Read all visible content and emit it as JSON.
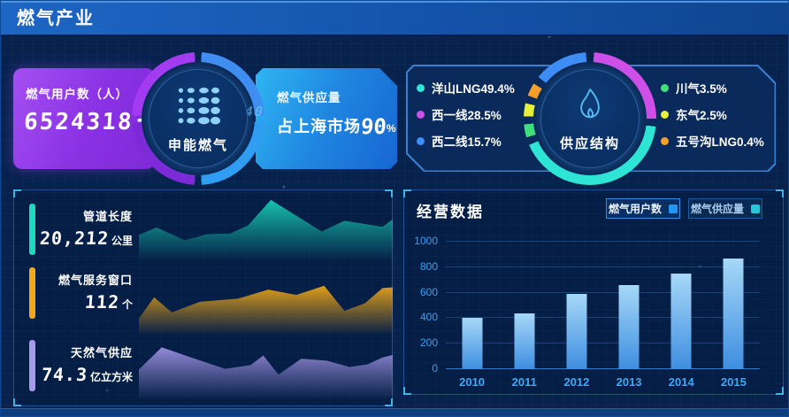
{
  "colors": {
    "background": "#06224d",
    "header_gradient_start": "#1e66c4",
    "header_gradient_end": "#0f458f",
    "users_card_purple": "#8a31e4",
    "supply_card_blue": "#1f86e0",
    "panel_border": "#1d5092",
    "axis_label": "#3fa9f5"
  },
  "header": {
    "title": "燃气产业"
  },
  "gas_users_card": {
    "label": "燃气用户数（人）",
    "value": "65243183"
  },
  "company_ring": {
    "name": "申能燃气",
    "decor_number": "40"
  },
  "gas_supply_card": {
    "label": "燃气供应量",
    "market_prefix": "占上海市场",
    "percent": "90",
    "percent_sign": "%"
  },
  "supply_structure": {
    "title": "供应结构",
    "legend_left": [
      {
        "label": "洋山LNG49.4%",
        "color": "#2ee6d4"
      },
      {
        "label": "西一线28.5%",
        "color": "#cf4fe8"
      },
      {
        "label": "西二线15.7%",
        "color": "#3f8ef5"
      }
    ],
    "legend_right": [
      {
        "label": "川气3.5%",
        "color": "#3fe07a"
      },
      {
        "label": "东气2.5%",
        "color": "#e8f03a"
      },
      {
        "label": "五号沟LNG0.4%",
        "color": "#f5a028"
      }
    ]
  },
  "stats_panel": {
    "rows": [
      {
        "label": "管道长度",
        "value": "20,212",
        "unit": "公里",
        "color": "#1fd8c0"
      },
      {
        "label": "燃气服务窗口",
        "value": "112",
        "unit": "个",
        "color": "#f0a818"
      },
      {
        "label": "天然气供应",
        "value": "74.3",
        "unit": "亿立方米",
        "color": "#a89ae8"
      }
    ]
  },
  "business_panel": {
    "title": "经营数据",
    "buttons": [
      {
        "label": "燃气用户数",
        "color": "#2196f3",
        "active": true
      },
      {
        "label": "燃气供应量",
        "color": "#26c6da",
        "active": false
      }
    ]
  },
  "chart_data": [
    {
      "type": "pie",
      "title": "供应结构",
      "legend_position": "both-sides",
      "series": [
        {
          "name": "洋山LNG",
          "value": 49.4,
          "color": "#2ee6d4"
        },
        {
          "name": "西一线",
          "value": 28.5,
          "color": "#cf4fe8"
        },
        {
          "name": "西二线",
          "value": 15.7,
          "color": "#3f8ef5"
        },
        {
          "name": "川气",
          "value": 3.5,
          "color": "#3fe07a"
        },
        {
          "name": "东气",
          "value": 2.5,
          "color": "#e8f03a"
        },
        {
          "name": "五号沟LNG",
          "value": 0.4,
          "color": "#f5a028"
        }
      ],
      "ring_order": [
        1,
        0,
        3,
        4,
        5,
        2
      ]
    },
    {
      "type": "area",
      "name": "管道长度",
      "color": "#17c9b2",
      "points": [
        [
          0,
          47
        ],
        [
          7,
          58
        ],
        [
          18,
          39
        ],
        [
          27,
          48
        ],
        [
          36,
          49
        ],
        [
          43,
          61
        ],
        [
          52,
          99
        ],
        [
          72,
          52
        ],
        [
          81,
          68
        ],
        [
          96,
          59
        ],
        [
          100,
          70
        ]
      ]
    },
    {
      "type": "area",
      "name": "燃气服务窗口",
      "color": "#eaa417",
      "points": [
        [
          0,
          27
        ],
        [
          6,
          55
        ],
        [
          13,
          35
        ],
        [
          24,
          49
        ],
        [
          39,
          53
        ],
        [
          51,
          65
        ],
        [
          62,
          58
        ],
        [
          73,
          70
        ],
        [
          81,
          37
        ],
        [
          89,
          47
        ],
        [
          96,
          67
        ],
        [
          100,
          68
        ]
      ]
    },
    {
      "type": "area",
      "name": "天然气供应",
      "color": "#9b8fe0",
      "points": [
        [
          0,
          55
        ],
        [
          9,
          90
        ],
        [
          19,
          76
        ],
        [
          34,
          56
        ],
        [
          44,
          62
        ],
        [
          49,
          77
        ],
        [
          55,
          47
        ],
        [
          64,
          72
        ],
        [
          74,
          69
        ],
        [
          83,
          59
        ],
        [
          90,
          63
        ],
        [
          96,
          74
        ],
        [
          100,
          78
        ]
      ]
    },
    {
      "type": "bar",
      "title": "经营数据",
      "categories": [
        "2010",
        "2011",
        "2012",
        "2013",
        "2014",
        "2015"
      ],
      "values": [
        400,
        435,
        590,
        660,
        750,
        870
      ],
      "ylim": [
        0,
        1000
      ],
      "yticks": [
        0,
        200,
        400,
        600,
        800,
        1000
      ],
      "grid": true,
      "legend": [
        "燃气用户数",
        "燃气供应量"
      ],
      "bar_color_top": "#a6d8f8",
      "bar_color_bottom": "#3e8ee0"
    }
  ]
}
